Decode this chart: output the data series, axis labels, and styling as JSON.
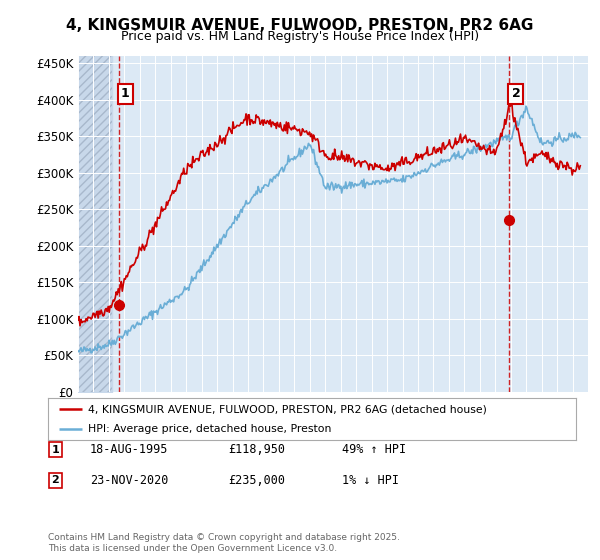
{
  "title_line1": "4, KINGSMUIR AVENUE, FULWOOD, PRESTON, PR2 6AG",
  "title_line2": "Price paid vs. HM Land Registry's House Price Index (HPI)",
  "ylim": [
    0,
    460000
  ],
  "yticks": [
    0,
    50000,
    100000,
    150000,
    200000,
    250000,
    300000,
    350000,
    400000,
    450000
  ],
  "ytick_labels": [
    "£0",
    "£50K",
    "£100K",
    "£150K",
    "£200K",
    "£250K",
    "£300K",
    "£350K",
    "£400K",
    "£450K"
  ],
  "xlim_start": 1993,
  "xlim_end": 2026,
  "hpi_color": "#6baed6",
  "price_color": "#cc0000",
  "bg_color": "#dce9f5",
  "hatch_fill_color": "#c8d8ea",
  "grid_color": "#ffffff",
  "legend_entry1": "4, KINGSMUIR AVENUE, FULWOOD, PRESTON, PR2 6AG (detached house)",
  "legend_entry2": "HPI: Average price, detached house, Preston",
  "sale1_year": 1995.63,
  "sale1_price": 118950,
  "sale2_year": 2020.9,
  "sale2_price": 235000,
  "footer": "Contains HM Land Registry data © Crown copyright and database right 2025.\nThis data is licensed under the Open Government Licence v3.0."
}
